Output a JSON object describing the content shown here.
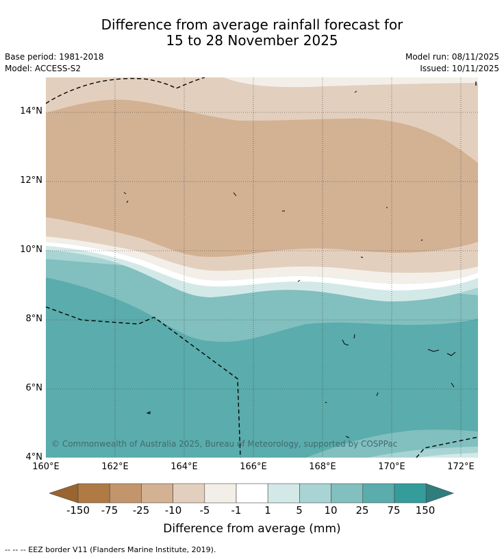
{
  "header": {
    "title_line1": "Difference from average rainfall forecast for",
    "title_line2": "15 to 28 November 2025",
    "base_period": "Base period: 1981-2018",
    "model": "Model: ACCESS-S2",
    "model_run": "Model run: 08/11/2025",
    "issued": "Issued: 10/11/2025"
  },
  "map": {
    "lat_labels": [
      "14°N",
      "12°N",
      "10°N",
      "8°N",
      "6°N",
      "4°N"
    ],
    "lon_labels": [
      "160°E",
      "162°E",
      "164°E",
      "166°E",
      "168°E",
      "170°E",
      "172°E"
    ],
    "copyright": "© Commonwealth of Australia 2025, Bureau of Meteorology, supported by COSPPac"
  },
  "legend": {
    "title": "Difference from average (mm)",
    "ticks": [
      "-150",
      "-75",
      "-25",
      "-10",
      "-5",
      "-1",
      "1",
      "5",
      "10",
      "25",
      "75",
      "150"
    ],
    "colors": [
      "#9a6430",
      "#b07a44",
      "#c2956c",
      "#d3b193",
      "#e3cfbd",
      "#f3efe8",
      "#ffffff",
      "#d3e9e8",
      "#a9d4d4",
      "#82bfbf",
      "#5bacac",
      "#359c9c",
      "#2f7e7e"
    ]
  },
  "footer": {
    "eez_note": "--  --  -- EEZ border V11 (Flanders Marine Institute, 2019)."
  }
}
